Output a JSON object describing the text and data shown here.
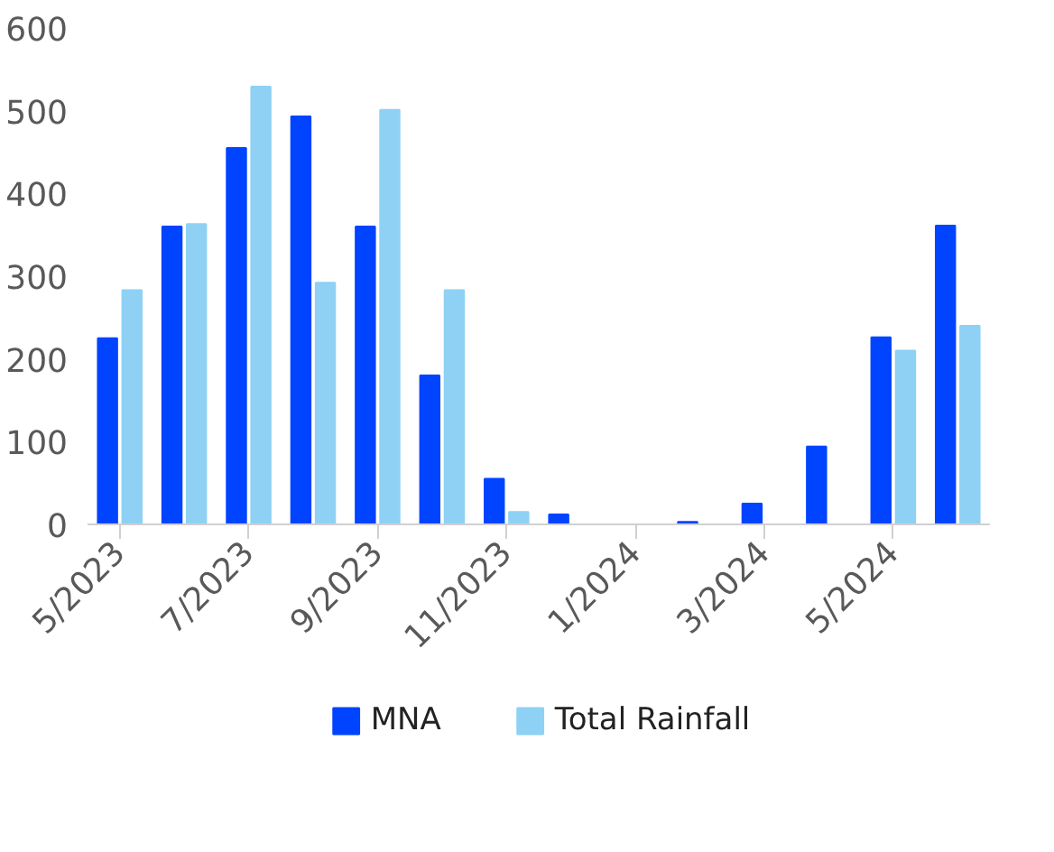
{
  "chart_data": {
    "type": "bar",
    "categories": [
      "5/2023",
      null,
      "7/2023",
      null,
      "9/2023",
      null,
      "11/2023",
      null,
      "1/2024",
      null,
      "3/2024",
      null,
      "5/2024",
      null
    ],
    "series": [
      {
        "name": "MNA",
        "color": "#0044ff",
        "values": [
          225,
          360,
          455,
          493,
          360,
          180,
          55,
          12,
          0,
          3,
          25,
          94,
          226,
          361
        ]
      },
      {
        "name": "Total Rainfall",
        "color": "#8ed1f4",
        "values": [
          283,
          363,
          529,
          292,
          501,
          283,
          15,
          0,
          0,
          0,
          0,
          0,
          210,
          240
        ]
      }
    ],
    "ylim": [
      0,
      600
    ],
    "yticks": [
      0,
      100,
      200,
      300,
      400,
      500,
      600
    ],
    "grid": false,
    "legend": "bottom"
  }
}
